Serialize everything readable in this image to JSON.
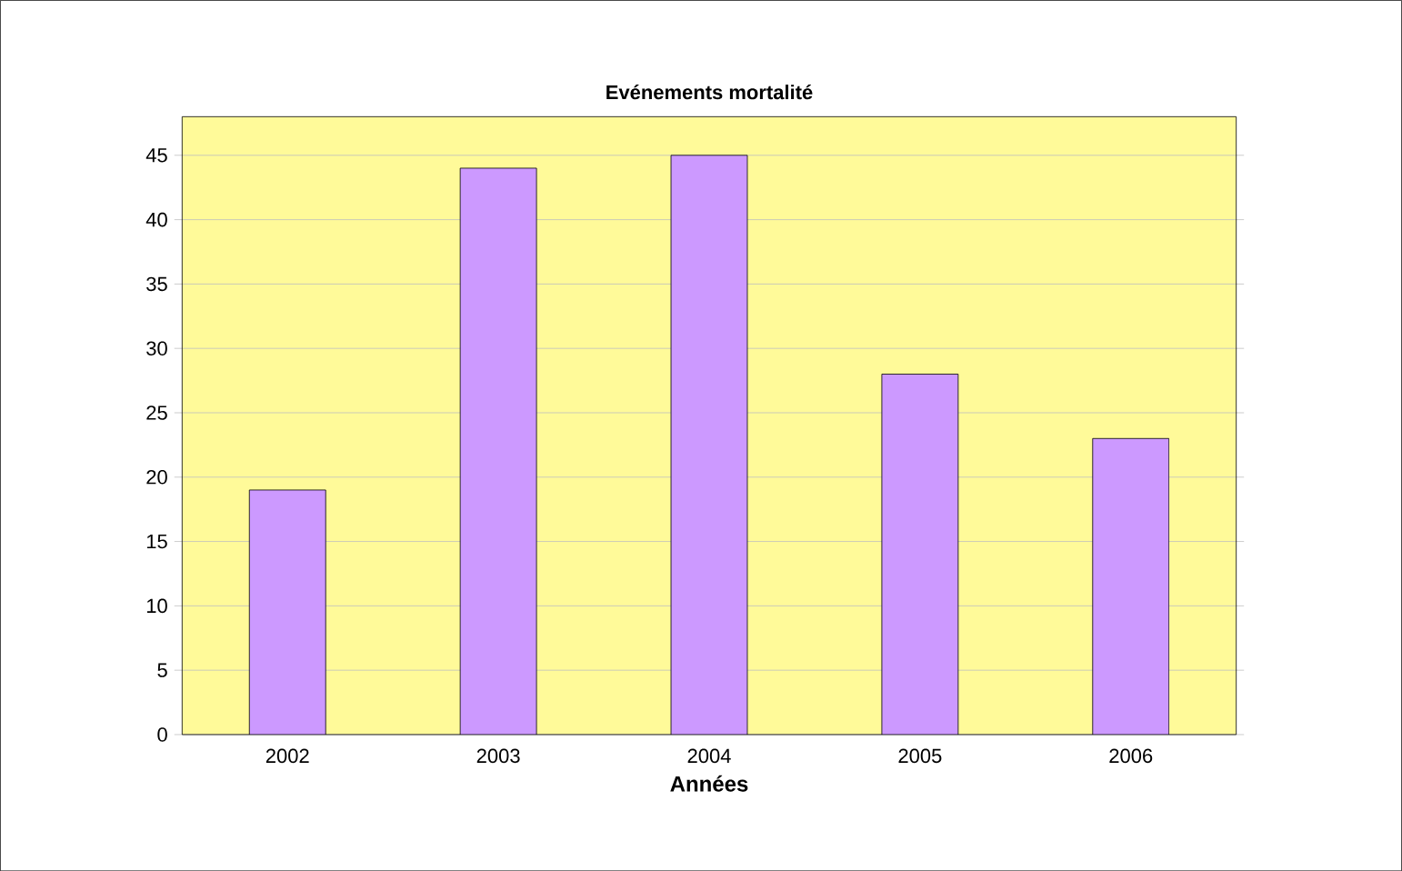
{
  "chart_data": {
    "type": "bar",
    "title": "Evénements mortalité",
    "xlabel": "Années",
    "categories": [
      "2002",
      "2003",
      "2004",
      "2005",
      "2006"
    ],
    "values": [
      19,
      44,
      45,
      28,
      23
    ],
    "color": "#cc99ff",
    "ylim": [
      0,
      48
    ],
    "yticks": [
      0,
      5,
      10,
      15,
      20,
      25,
      30,
      35,
      40,
      45
    ],
    "grid": "y"
  }
}
